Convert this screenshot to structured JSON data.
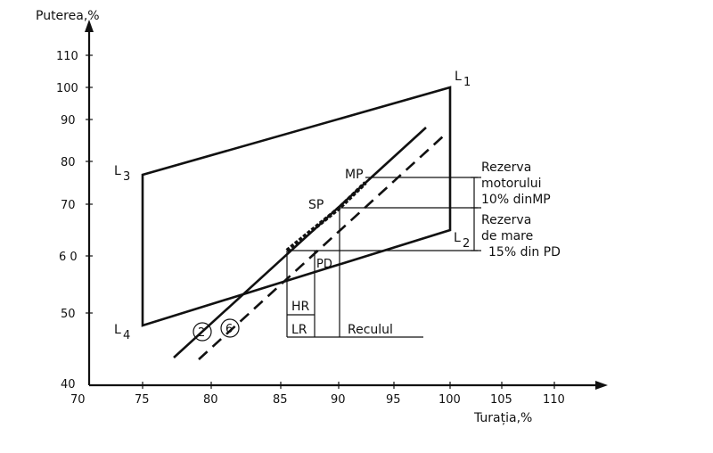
{
  "axes": {
    "y_title": "Puterea,%",
    "x_title": "Turația,%",
    "y_ticks": [
      "110",
      "100",
      "90",
      "80",
      "70",
      "6 0",
      "50",
      "40"
    ],
    "x_ticks": [
      "70",
      "75",
      "80",
      "85",
      "90",
      "95",
      "100",
      "105",
      "110"
    ]
  },
  "points": {
    "L1": "L",
    "L1_sub": "1",
    "L2": "L",
    "L2_sub": "2",
    "L3": "L",
    "L3_sub": "3",
    "L4": "L",
    "L4_sub": "4",
    "MP": "MP",
    "SP": "SP",
    "PD": "PD"
  },
  "curves": {
    "c2": "2",
    "c6": "6"
  },
  "annotations": {
    "rezerva_motorului_1": "Rezerva",
    "rezerva_motorului_2": "motorului",
    "rezerva_motorului_3": "10% dinMP",
    "rezerva_mare_1": "Rezerva",
    "rezerva_mare_2": "de mare",
    "rezerva_mare_3": "15% din PD",
    "HR": "HR",
    "LR": "LR",
    "reculul": "Reculul"
  }
}
